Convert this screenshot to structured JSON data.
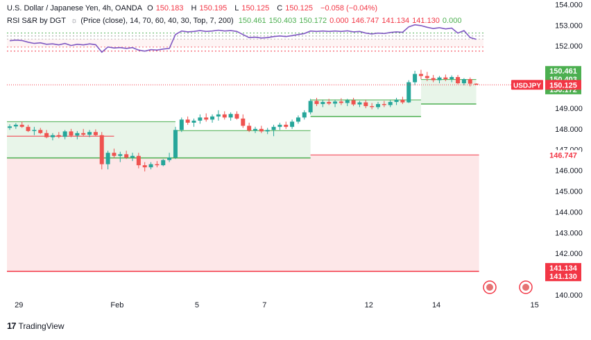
{
  "header": {
    "symbol_line": "U.S. Dollar / Japanese Yen, 4h, OANDA",
    "o_label": "O",
    "o_value": "150.183",
    "h_label": "H",
    "h_value": "150.195",
    "l_label": "L",
    "l_value": "150.125",
    "c_label": "C",
    "c_value": "150.125",
    "change": "−0.058 (−0.04%)",
    "indicator_name": "RSI S&R by DGT",
    "indicator_icon": "sun-icon",
    "indicator_params": "(Price (close), 14, 70, 60, 40, 30, Top, 7, 200)",
    "indicator_values": [
      "150.461",
      "150.403",
      "150.172",
      "0.000",
      "146.747",
      "141.134",
      "141.130",
      "0.000"
    ]
  },
  "colors": {
    "up": "#26a69a",
    "down": "#ef5350",
    "rsi_line": "#7e57c2",
    "support_line": "#4caf50",
    "resistance_line": "#f23645",
    "support_fill": "#e8f5e9",
    "resistance_fill": "#fde7e8",
    "text": "#131722",
    "price_tag_bg": "#f23645",
    "green_tag_bg": "#4caf50"
  },
  "chart_data": {
    "type": "candlestick",
    "ylim": [
      140.0,
      154.4
    ],
    "y_ticks": [
      "154.000",
      "153.000",
      "152.000",
      "149.000",
      "148.000",
      "147.000",
      "146.000",
      "145.000",
      "144.000",
      "143.000",
      "142.000",
      "140.000"
    ],
    "x_labels": [
      "29",
      "Feb",
      "5",
      "7",
      "12",
      "14",
      "15"
    ],
    "candles": [
      {
        "o": 148.05,
        "h": 148.22,
        "l": 147.95,
        "c": 148.12
      },
      {
        "o": 148.12,
        "h": 148.28,
        "l": 148.0,
        "c": 148.2
      },
      {
        "o": 148.2,
        "h": 148.35,
        "l": 148.05,
        "c": 148.1
      },
      {
        "o": 148.1,
        "h": 148.2,
        "l": 147.85,
        "c": 147.9
      },
      {
        "o": 147.9,
        "h": 148.1,
        "l": 147.7,
        "c": 147.95
      },
      {
        "o": 147.95,
        "h": 148.05,
        "l": 147.75,
        "c": 147.8
      },
      {
        "o": 147.8,
        "h": 147.95,
        "l": 147.55,
        "c": 147.6
      },
      {
        "o": 147.6,
        "h": 147.8,
        "l": 147.45,
        "c": 147.7
      },
      {
        "o": 147.7,
        "h": 147.85,
        "l": 147.55,
        "c": 147.62
      },
      {
        "o": 147.62,
        "h": 147.95,
        "l": 147.5,
        "c": 147.88
      },
      {
        "o": 147.88,
        "h": 148.0,
        "l": 147.6,
        "c": 147.68
      },
      {
        "o": 147.68,
        "h": 147.9,
        "l": 147.5,
        "c": 147.8
      },
      {
        "o": 147.8,
        "h": 148.0,
        "l": 147.65,
        "c": 147.72
      },
      {
        "o": 147.72,
        "h": 147.95,
        "l": 147.6,
        "c": 147.85
      },
      {
        "o": 147.85,
        "h": 147.98,
        "l": 147.65,
        "c": 147.7
      },
      {
        "o": 147.7,
        "h": 147.85,
        "l": 146.05,
        "c": 146.3
      },
      {
        "o": 146.3,
        "h": 146.95,
        "l": 146.05,
        "c": 146.85
      },
      {
        "o": 146.85,
        "h": 147.05,
        "l": 146.6,
        "c": 146.7
      },
      {
        "o": 146.7,
        "h": 146.9,
        "l": 146.4,
        "c": 146.78
      },
      {
        "o": 146.78,
        "h": 146.95,
        "l": 146.55,
        "c": 146.62
      },
      {
        "o": 146.62,
        "h": 146.85,
        "l": 146.45,
        "c": 146.7
      },
      {
        "o": 146.7,
        "h": 146.85,
        "l": 146.1,
        "c": 146.25
      },
      {
        "o": 146.25,
        "h": 146.4,
        "l": 145.95,
        "c": 146.15
      },
      {
        "o": 146.15,
        "h": 146.4,
        "l": 146.05,
        "c": 146.3
      },
      {
        "o": 146.3,
        "h": 146.45,
        "l": 146.15,
        "c": 146.25
      },
      {
        "o": 146.25,
        "h": 146.55,
        "l": 146.2,
        "c": 146.5
      },
      {
        "o": 146.5,
        "h": 146.85,
        "l": 146.4,
        "c": 146.62
      },
      {
        "o": 146.62,
        "h": 148.1,
        "l": 146.55,
        "c": 147.95
      },
      {
        "o": 147.95,
        "h": 148.55,
        "l": 147.85,
        "c": 148.45
      },
      {
        "o": 148.45,
        "h": 148.6,
        "l": 148.2,
        "c": 148.3
      },
      {
        "o": 148.3,
        "h": 148.5,
        "l": 148.1,
        "c": 148.4
      },
      {
        "o": 148.4,
        "h": 148.7,
        "l": 148.25,
        "c": 148.55
      },
      {
        "o": 148.55,
        "h": 148.75,
        "l": 148.35,
        "c": 148.45
      },
      {
        "o": 148.45,
        "h": 148.7,
        "l": 148.3,
        "c": 148.6
      },
      {
        "o": 148.6,
        "h": 148.9,
        "l": 148.4,
        "c": 148.7
      },
      {
        "o": 148.7,
        "h": 148.85,
        "l": 148.45,
        "c": 148.55
      },
      {
        "o": 148.55,
        "h": 148.8,
        "l": 148.4,
        "c": 148.72
      },
      {
        "o": 148.72,
        "h": 148.85,
        "l": 148.45,
        "c": 148.5
      },
      {
        "o": 148.5,
        "h": 148.7,
        "l": 148.05,
        "c": 148.15
      },
      {
        "o": 148.15,
        "h": 148.3,
        "l": 147.85,
        "c": 147.92
      },
      {
        "o": 147.92,
        "h": 148.1,
        "l": 147.8,
        "c": 148.0
      },
      {
        "o": 148.0,
        "h": 148.15,
        "l": 147.8,
        "c": 147.88
      },
      {
        "o": 147.88,
        "h": 148.05,
        "l": 147.75,
        "c": 147.95
      },
      {
        "o": 147.95,
        "h": 148.2,
        "l": 147.65,
        "c": 148.1
      },
      {
        "o": 148.1,
        "h": 148.3,
        "l": 147.95,
        "c": 148.2
      },
      {
        "o": 148.2,
        "h": 148.35,
        "l": 148.0,
        "c": 148.1
      },
      {
        "o": 148.1,
        "h": 148.45,
        "l": 148.0,
        "c": 148.35
      },
      {
        "o": 148.35,
        "h": 148.65,
        "l": 148.25,
        "c": 148.55
      },
      {
        "o": 148.55,
        "h": 148.9,
        "l": 148.45,
        "c": 148.8
      },
      {
        "o": 148.8,
        "h": 149.45,
        "l": 148.7,
        "c": 149.35
      },
      {
        "o": 149.35,
        "h": 149.5,
        "l": 149.1,
        "c": 149.2
      },
      {
        "o": 149.2,
        "h": 149.4,
        "l": 149.05,
        "c": 149.3
      },
      {
        "o": 149.3,
        "h": 149.45,
        "l": 149.15,
        "c": 149.22
      },
      {
        "o": 149.22,
        "h": 149.4,
        "l": 149.05,
        "c": 149.32
      },
      {
        "o": 149.32,
        "h": 149.48,
        "l": 149.15,
        "c": 149.25
      },
      {
        "o": 149.25,
        "h": 149.45,
        "l": 149.1,
        "c": 149.38
      },
      {
        "o": 149.38,
        "h": 149.5,
        "l": 149.1,
        "c": 149.18
      },
      {
        "o": 149.18,
        "h": 149.35,
        "l": 149.05,
        "c": 149.28
      },
      {
        "o": 149.28,
        "h": 149.4,
        "l": 149.0,
        "c": 149.1
      },
      {
        "o": 149.1,
        "h": 149.25,
        "l": 148.95,
        "c": 149.05
      },
      {
        "o": 149.05,
        "h": 149.3,
        "l": 148.95,
        "c": 149.2
      },
      {
        "o": 149.2,
        "h": 149.35,
        "l": 149.05,
        "c": 149.15
      },
      {
        "o": 149.15,
        "h": 149.4,
        "l": 149.05,
        "c": 149.3
      },
      {
        "o": 149.3,
        "h": 149.5,
        "l": 149.15,
        "c": 149.4
      },
      {
        "o": 149.4,
        "h": 149.55,
        "l": 149.2,
        "c": 149.28
      },
      {
        "o": 149.28,
        "h": 150.35,
        "l": 149.25,
        "c": 150.25
      },
      {
        "o": 150.25,
        "h": 150.8,
        "l": 150.1,
        "c": 150.65
      },
      {
        "o": 150.65,
        "h": 150.85,
        "l": 150.4,
        "c": 150.55
      },
      {
        "o": 150.55,
        "h": 150.75,
        "l": 150.3,
        "c": 150.45
      },
      {
        "o": 150.45,
        "h": 150.6,
        "l": 150.25,
        "c": 150.35
      },
      {
        "o": 150.35,
        "h": 150.55,
        "l": 150.2,
        "c": 150.48
      },
      {
        "o": 150.48,
        "h": 150.62,
        "l": 150.3,
        "c": 150.4
      },
      {
        "o": 150.4,
        "h": 150.58,
        "l": 150.25,
        "c": 150.5
      },
      {
        "o": 150.5,
        "h": 150.6,
        "l": 150.15,
        "c": 150.2
      },
      {
        "o": 150.2,
        "h": 150.45,
        "l": 150.1,
        "c": 150.4
      },
      {
        "o": 150.4,
        "h": 150.48,
        "l": 150.05,
        "c": 150.18
      },
      {
        "o": 150.18,
        "h": 150.195,
        "l": 150.125,
        "c": 150.125
      }
    ],
    "rsi_line": [
      152.25,
      152.28,
      152.26,
      152.18,
      152.12,
      152.15,
      152.08,
      152.1,
      152.05,
      152.12,
      152.02,
      152.08,
      152.05,
      152.1,
      152.06,
      151.7,
      151.95,
      151.9,
      151.92,
      151.88,
      151.92,
      151.8,
      151.75,
      151.82,
      151.8,
      151.85,
      151.88,
      152.55,
      152.72,
      152.68,
      152.7,
      152.74,
      152.7,
      152.72,
      152.76,
      152.72,
      152.74,
      152.7,
      152.55,
      152.4,
      152.42,
      152.38,
      152.4,
      152.45,
      152.48,
      152.45,
      152.5,
      152.55,
      152.6,
      152.72,
      152.7,
      152.72,
      152.7,
      152.72,
      152.7,
      152.73,
      152.68,
      152.7,
      152.62,
      152.58,
      152.62,
      152.6,
      152.65,
      152.68,
      152.66,
      152.92,
      153.02,
      152.98,
      152.9,
      152.84,
      152.88,
      152.82,
      152.86,
      152.62,
      152.74,
      152.4,
      152.32
    ],
    "rsi_levels": [
      152.62,
      152.48,
      152.33,
      151.95,
      151.75
    ],
    "support_zones": [
      {
        "from": 0,
        "to": 27,
        "top": 148.35,
        "bottom": 146.6
      },
      {
        "from": 27,
        "to": 49,
        "top": 147.92,
        "bottom": 146.6
      },
      {
        "from": 49,
        "to": 67,
        "top": 149.4,
        "bottom": 148.6
      },
      {
        "from": 67,
        "to": 76,
        "top": 150.38,
        "bottom": 149.2
      }
    ],
    "resistance_zone": {
      "from": 0,
      "to": 76,
      "top": 146.747,
      "bottom": 141.134
    },
    "current_price": 150.125,
    "price_tags": [
      {
        "label": "150.461",
        "value": 150.461,
        "kind": "green"
      },
      {
        "label": "150.403",
        "value": 150.403,
        "kind": "green"
      },
      {
        "label": "150.172",
        "value": 150.172,
        "kind": "green"
      },
      {
        "label": "150.125",
        "value": 150.125,
        "kind": "red",
        "symbol": "USDJPY"
      },
      {
        "label": "146.747",
        "value": 146.747,
        "kind": "redtext"
      },
      {
        "label": "141.134",
        "value": 141.134,
        "kind": "red"
      },
      {
        "label": "141.130",
        "value": 141.13,
        "kind": "red"
      }
    ]
  },
  "footer": {
    "brand": "TradingView",
    "logo": "tradingview-logo-icon"
  }
}
